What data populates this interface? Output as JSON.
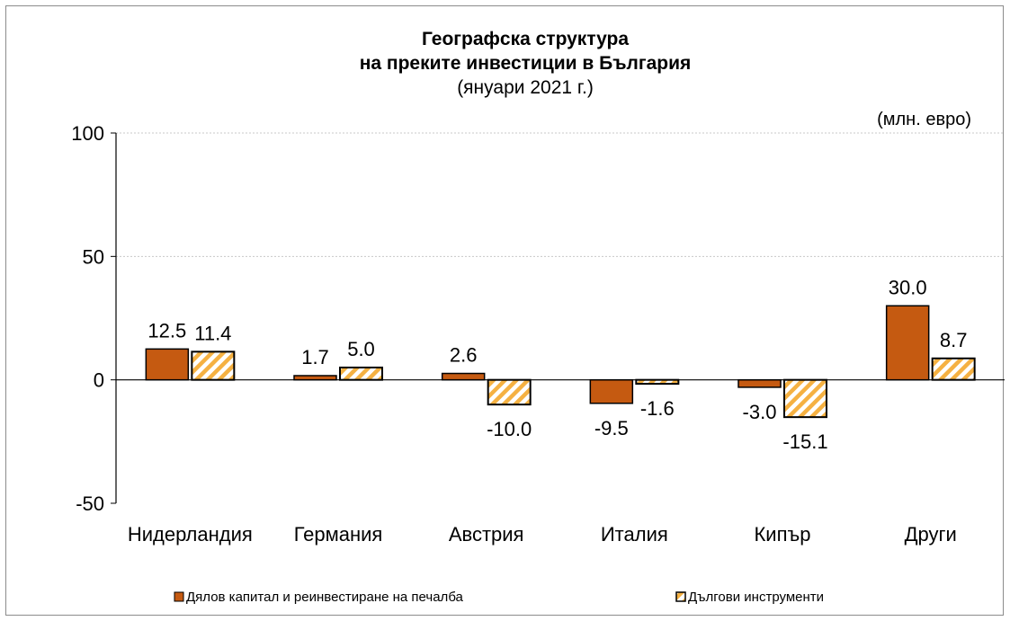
{
  "chart_data": {
    "type": "bar",
    "title": [
      "Географска структура",
      "на преките инвестиции в България"
    ],
    "subtitle": "(януари 2021 г.)",
    "unit": "(млн. евро)",
    "categories": [
      "Нидерландия",
      "Германия",
      "Австрия",
      "Италия",
      "Кипър",
      "Други"
    ],
    "series": [
      {
        "name": "Дялов капитал и реинвестиране на печалба",
        "values": [
          12.5,
          1.7,
          2.6,
          -9.5,
          -3.0,
          30.0
        ],
        "labels": [
          "12.5",
          "1.7",
          "2.6",
          "-9.5",
          "-3.0",
          "30.0"
        ],
        "color": "#c55a11",
        "pattern": "solid"
      },
      {
        "name": "Дългови инструменти",
        "values": [
          11.4,
          5.0,
          -10.0,
          -1.6,
          -15.1,
          8.7
        ],
        "labels": [
          "11.4",
          "5.0",
          "-10.0",
          "-1.6",
          "-15.1",
          "8.7"
        ],
        "color": "#f5b142",
        "pattern": "hatched"
      }
    ],
    "ylim": [
      -50,
      100
    ],
    "yticks": [
      -50,
      0,
      50,
      100
    ],
    "grid": true,
    "legend": "bottom"
  }
}
